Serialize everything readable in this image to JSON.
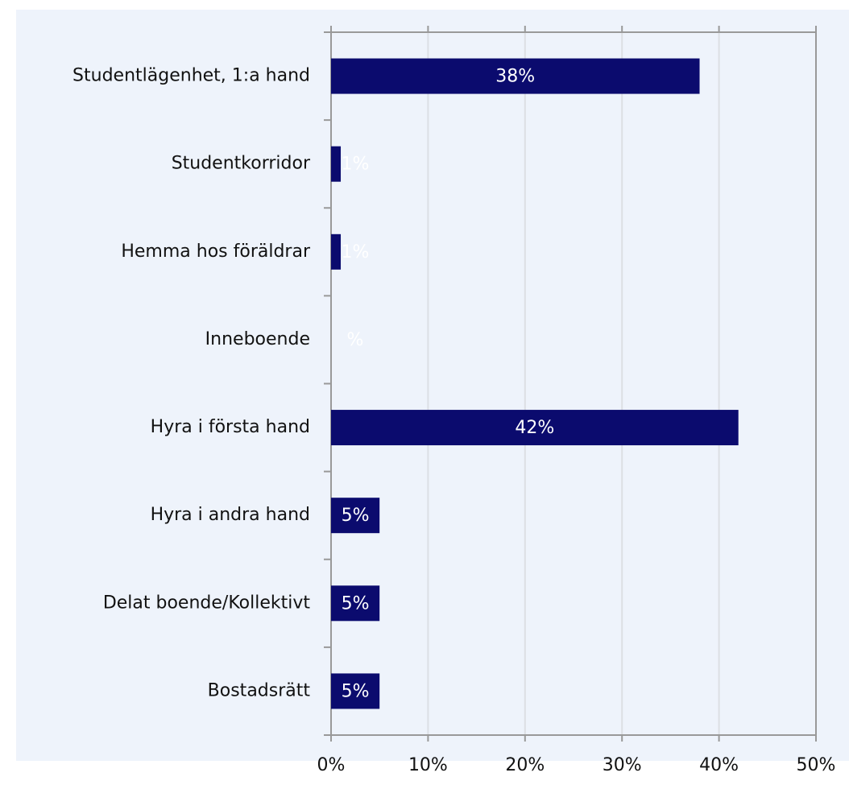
{
  "chart_data": {
    "type": "hbar",
    "categories": [
      "Studentlägenhet, 1:a hand",
      "Studentkorridor",
      "Hemma hos föräldrar",
      "Inneboende",
      "Hyra i första hand",
      "Hyra i andra hand",
      "Delat boende/Kollektivt",
      "Bostadsrätt"
    ],
    "values": [
      38,
      1,
      1,
      0,
      42,
      5,
      5,
      5
    ],
    "value_labels": [
      "38%",
      "1%",
      "1%",
      "%",
      "42%",
      "5%",
      "5%",
      "5%"
    ],
    "color": "#0b0b6e",
    "xlim": [
      0,
      50
    ],
    "xticks": [
      {
        "value": 0,
        "label": "0%"
      },
      {
        "value": 10,
        "label": "10%"
      },
      {
        "value": 20,
        "label": "20%"
      },
      {
        "value": 30,
        "label": "30%"
      },
      {
        "value": 40,
        "label": "40%"
      },
      {
        "value": 50,
        "label": "50%"
      }
    ],
    "grid": true
  }
}
